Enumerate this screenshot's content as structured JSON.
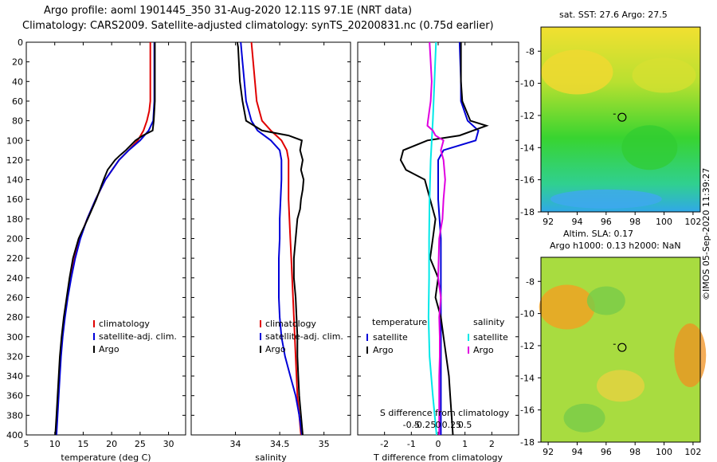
{
  "title": {
    "line1": "Argo profile: aoml 1901445_350 31-Aug-2020 12.11S 97.1E (NRT data)",
    "line2": "Climatology: CARS2009. Satellite-adjusted climatology: synTS_20200831.nc (0.75d earlier)"
  },
  "credit": "©IMOS 05-Sep-2020 11:39:27",
  "colors": {
    "climatology": "#e00000",
    "satellite": "#0000d8",
    "argo": "#000000",
    "cyan": "#00e8e8",
    "magenta": "#e000e0"
  },
  "chart_data": [
    {
      "type": "line",
      "name": "temperature",
      "xlabel": "temperature (deg C)",
      "xlim": [
        5,
        33
      ],
      "ylim": [
        400,
        0
      ],
      "xticks": [
        5,
        10,
        15,
        20,
        25,
        30
      ],
      "yticks": [
        0,
        20,
        40,
        60,
        80,
        100,
        120,
        140,
        160,
        180,
        200,
        220,
        240,
        260,
        280,
        300,
        320,
        340,
        360,
        380,
        400
      ],
      "legend": [
        "climatology",
        "satellite-adj. clim.",
        "Argo"
      ],
      "series": [
        {
          "name": "climatology",
          "color": "#e00000",
          "depth": [
            0,
            60,
            70,
            80,
            90,
            100,
            110,
            120,
            140,
            160,
            180,
            200,
            220,
            240,
            260,
            280,
            300,
            320,
            340,
            360,
            380,
            400
          ],
          "values": [
            26.8,
            26.8,
            26.6,
            26.2,
            25.6,
            24.6,
            23.0,
            21.3,
            18.9,
            17.2,
            15.7,
            14.4,
            13.5,
            12.8,
            12.2,
            11.7,
            11.3,
            11.0,
            10.8,
            10.6,
            10.4,
            10.2
          ]
        },
        {
          "name": "satellite-adj. clim.",
          "color": "#0000d8",
          "depth": [
            0,
            60,
            70,
            80,
            90,
            100,
            110,
            120,
            140,
            160,
            180,
            200,
            220,
            240,
            260,
            280,
            300,
            320,
            340,
            360,
            380,
            400
          ],
          "values": [
            27.5,
            27.5,
            27.4,
            27.3,
            26.5,
            25.0,
            23.0,
            21.3,
            18.9,
            17.2,
            15.7,
            14.5,
            13.6,
            12.9,
            12.3,
            11.8,
            11.4,
            11.1,
            10.9,
            10.7,
            10.5,
            10.3
          ]
        },
        {
          "name": "Argo",
          "color": "#000000",
          "depth": [
            0,
            60,
            70,
            80,
            90,
            95,
            100,
            110,
            115,
            120,
            130,
            140,
            160,
            180,
            200,
            220,
            240,
            260,
            280,
            300,
            320,
            340,
            360,
            380,
            400
          ],
          "values": [
            27.6,
            27.6,
            27.5,
            27.4,
            27.2,
            25.5,
            24.2,
            22.5,
            21.5,
            20.6,
            19.3,
            18.6,
            17.3,
            15.8,
            14.2,
            13.2,
            12.6,
            12.1,
            11.6,
            11.2,
            10.9,
            10.7,
            10.5,
            10.3,
            10.1
          ]
        }
      ]
    },
    {
      "type": "line",
      "name": "salinity",
      "xlabel": "salinity",
      "xlim": [
        33.5,
        35.3
      ],
      "ylim": [
        400,
        0
      ],
      "xticks": [
        34,
        34.5,
        35
      ],
      "xticklabels": [
        "34",
        "34.5",
        "35"
      ],
      "legend": [
        "climatology",
        "satellite-adj. clim.",
        "Argo"
      ],
      "series": [
        {
          "name": "climatology",
          "color": "#e00000",
          "depth": [
            0,
            20,
            40,
            60,
            80,
            90,
            100,
            110,
            120,
            140,
            160,
            180,
            200,
            220,
            240,
            260,
            280,
            300,
            320,
            340,
            360,
            380,
            400
          ],
          "values": [
            34.18,
            34.2,
            34.22,
            34.24,
            34.3,
            34.4,
            34.52,
            34.58,
            34.6,
            34.6,
            34.6,
            34.61,
            34.62,
            34.63,
            34.64,
            34.65,
            34.66,
            34.67,
            34.68,
            34.69,
            34.7,
            34.72,
            34.74
          ]
        },
        {
          "name": "satellite-adj. clim.",
          "color": "#0000d8",
          "depth": [
            0,
            20,
            40,
            60,
            80,
            90,
            100,
            110,
            120,
            140,
            160,
            180,
            200,
            220,
            240,
            260,
            280,
            300,
            320,
            340,
            360,
            380,
            400
          ],
          "values": [
            34.06,
            34.08,
            34.1,
            34.12,
            34.18,
            34.25,
            34.4,
            34.5,
            34.52,
            34.52,
            34.51,
            34.5,
            34.5,
            34.49,
            34.49,
            34.49,
            34.5,
            34.52,
            34.56,
            34.62,
            34.68,
            34.72,
            34.75
          ]
        },
        {
          "name": "Argo",
          "color": "#000000",
          "depth": [
            0,
            5,
            40,
            60,
            80,
            90,
            95,
            100,
            110,
            120,
            130,
            140,
            150,
            160,
            170,
            180,
            200,
            220,
            240,
            260,
            280,
            300,
            320,
            340,
            360,
            380,
            400
          ],
          "values": [
            34.02,
            34.03,
            34.05,
            34.08,
            34.12,
            34.3,
            34.6,
            34.75,
            34.73,
            34.76,
            34.74,
            34.77,
            34.76,
            34.74,
            34.73,
            34.7,
            34.68,
            34.66,
            34.66,
            34.68,
            34.69,
            34.7,
            34.7,
            34.71,
            34.72,
            34.74,
            34.76
          ]
        }
      ]
    },
    {
      "type": "line",
      "name": "difference from climatology",
      "xlabel": "T difference from climatology",
      "xlim": [
        -3,
        3
      ],
      "ylim": [
        400,
        0
      ],
      "xticks": [
        -2,
        -1,
        0,
        1,
        2
      ],
      "top_axis_label": "S difference from climatology",
      "top_ticks": [
        -0.5,
        -0.25,
        0,
        0.25,
        0.5
      ],
      "top_ticklabels": [
        "-0.5",
        "-0.25",
        "0",
        "0.25",
        "0.5"
      ],
      "legend_left_title": "temperature",
      "legend_right_title": "salinity",
      "legend_left": [
        "satellite",
        "Argo"
      ],
      "legend_right": [
        "satellite",
        "Argo"
      ],
      "series": [
        {
          "name": "temperature satellite",
          "color": "#0000d8",
          "depth": [
            0,
            40,
            60,
            80,
            90,
            100,
            110,
            120,
            160,
            200,
            240,
            280,
            320,
            360,
            400
          ],
          "values": [
            0.8,
            0.85,
            0.85,
            1.1,
            1.5,
            1.4,
            0.2,
            0.0,
            0.0,
            0.1,
            0.1,
            0.1,
            0.1,
            0.1,
            0.1
          ]
        },
        {
          "name": "temperature Argo",
          "color": "#000000",
          "depth": [
            0,
            40,
            60,
            80,
            85,
            95,
            100,
            110,
            120,
            130,
            140,
            160,
            180,
            200,
            220,
            240,
            260,
            280,
            300,
            320,
            340,
            360,
            380,
            400
          ],
          "values": [
            0.85,
            0.85,
            0.9,
            1.2,
            1.8,
            0.8,
            -0.4,
            -1.3,
            -1.4,
            -1.2,
            -0.5,
            -0.3,
            -0.1,
            -0.2,
            -0.3,
            0.0,
            -0.1,
            0.1,
            0.2,
            0.3,
            0.4,
            0.45,
            0.5,
            0.55
          ]
        },
        {
          "name": "salinity satellite",
          "color": "#00e8e8",
          "depth": [
            0,
            40,
            80,
            120,
            160,
            200,
            240,
            280,
            320,
            360,
            400
          ],
          "values": [
            -0.04,
            -0.07,
            -0.1,
            -0.14,
            -0.16,
            -0.17,
            -0.17,
            -0.18,
            -0.16,
            -0.1,
            -0.03
          ]
        },
        {
          "name": "salinity Argo",
          "color": "#e000e0",
          "depth": [
            0,
            20,
            40,
            60,
            80,
            85,
            90,
            95,
            100,
            110,
            120,
            140,
            160,
            180,
            200,
            240,
            260,
            280,
            300,
            320,
            340,
            360,
            380,
            400
          ],
          "values": [
            -0.16,
            -0.14,
            -0.12,
            -0.14,
            -0.19,
            -0.2,
            -0.1,
            -0.05,
            0.1,
            0.05,
            0.1,
            0.13,
            0.1,
            0.08,
            0.02,
            0.0,
            0.05,
            0.02,
            0.03,
            0.03,
            0.02,
            0.02,
            0.02,
            0.02
          ]
        }
      ]
    },
    {
      "type": "heatmap",
      "name": "sst map",
      "title": "sat. SST: 27.6 Argo: 27.5",
      "xlim": [
        91.5,
        102.5
      ],
      "ylim": [
        -18,
        -6.5
      ],
      "xticks": [
        92,
        94,
        96,
        98,
        100,
        102
      ],
      "yticks": [
        -8,
        -10,
        -12,
        -14,
        -16,
        -18
      ],
      "argo_position": [
        97.1,
        -12.11
      ]
    },
    {
      "type": "heatmap",
      "name": "sla map",
      "title": "Altim. SLA: 0.17",
      "subtitle": "Argo h1000: 0.13 h2000: NaN",
      "xlim": [
        91.5,
        102.5
      ],
      "ylim": [
        -18,
        -6.5
      ],
      "xticks": [
        92,
        94,
        96,
        98,
        100,
        102
      ],
      "yticks": [
        -8,
        -10,
        -12,
        -14,
        -16,
        -18
      ],
      "argo_position": [
        97.1,
        -12.11
      ]
    }
  ]
}
